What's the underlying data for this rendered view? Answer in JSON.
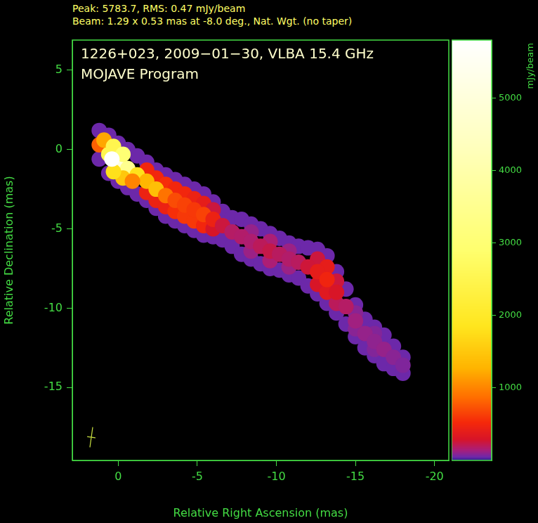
{
  "chart_data": {
    "type": "intensity_map",
    "header": [
      "Peak: 5783.7, RMS: 0.47 mJy/beam",
      "Beam: 1.29 x 0.53 mas at -8.0 deg., Nat. Wgt. (no taper)"
    ],
    "title": "1226+023, 2009−01−30, VLBA 15.4 GHz",
    "subtitle": "MOJAVE Program",
    "x_label": "Relative Right Ascension (mas)",
    "y_label": "Relative Declination (mas)",
    "xlim": [
      2.9,
      -20.9
    ],
    "xticks": [
      0,
      -5,
      -10,
      -15,
      -20
    ],
    "ylim": [
      -19.6,
      6.9
    ],
    "yticks": [
      -15,
      -10,
      -5,
      0,
      5
    ],
    "grid": false,
    "beam": {
      "major": 1.29,
      "minor": 0.53,
      "pa": -8.0
    },
    "colorbar": {
      "label": "mJy/beam",
      "lim": [
        0,
        5800
      ],
      "ticks": [
        1000,
        2000,
        3000,
        4000,
        5000
      ]
    },
    "points": [
      [
        1.2,
        1.2,
        45
      ],
      [
        0.6,
        0.9,
        45
      ],
      [
        0,
        0.4,
        45
      ],
      [
        -0.6,
        0,
        45
      ],
      [
        -1.2,
        -0.4,
        45
      ],
      [
        -1.8,
        -0.8,
        45
      ],
      [
        -2.4,
        -1.3,
        45
      ],
      [
        -3,
        -1.6,
        45
      ],
      [
        -3.6,
        -1.9,
        45
      ],
      [
        -4.2,
        -2.2,
        45
      ],
      [
        -4.8,
        -2.5,
        45
      ],
      [
        -5.4,
        -2.8,
        45
      ],
      [
        -6,
        -3.3,
        45
      ],
      [
        -6.6,
        -3.9,
        45
      ],
      [
        -7.2,
        -4.3,
        45
      ],
      [
        -7.8,
        -4.4,
        45
      ],
      [
        -8.4,
        -4.7,
        45
      ],
      [
        -9,
        -5,
        45
      ],
      [
        -9.6,
        -5.3,
        45
      ],
      [
        -10.2,
        -5.6,
        45
      ],
      [
        -10.8,
        -5.9,
        45
      ],
      [
        -11.4,
        -6.1,
        45
      ],
      [
        -12,
        -6.2,
        45
      ],
      [
        -12.6,
        -6.3,
        45
      ],
      [
        -13.2,
        -6.7,
        45
      ],
      [
        -13.8,
        -7.7,
        45
      ],
      [
        -14.4,
        -8.8,
        45
      ],
      [
        -15,
        -9.8,
        45
      ],
      [
        -15.6,
        -10.7,
        45
      ],
      [
        -16.2,
        -11.2,
        45
      ],
      [
        -16.8,
        -11.7,
        45
      ],
      [
        -17.4,
        -12.4,
        45
      ],
      [
        -18,
        -13.1,
        45
      ],
      [
        1.2,
        -0.6,
        45
      ],
      [
        0.6,
        -1.5,
        45
      ],
      [
        0,
        -2,
        45
      ],
      [
        -0.6,
        -2.4,
        45
      ],
      [
        -1.2,
        -2.8,
        45
      ],
      [
        -1.8,
        -3.2,
        45
      ],
      [
        -2.4,
        -3.7,
        45
      ],
      [
        -3,
        -4.2,
        45
      ],
      [
        -3.6,
        -4.5,
        45
      ],
      [
        -4.2,
        -4.8,
        45
      ],
      [
        -4.8,
        -5.1,
        45
      ],
      [
        -5.4,
        -5.4,
        45
      ],
      [
        -6,
        -5.5,
        45
      ],
      [
        -6.6,
        -5.7,
        45
      ],
      [
        -7.2,
        -6.1,
        45
      ],
      [
        -7.8,
        -6.6,
        45
      ],
      [
        -8.4,
        -6.9,
        45
      ],
      [
        -9,
        -7.2,
        45
      ],
      [
        -9.6,
        -7.5,
        45
      ],
      [
        -10.2,
        -7.6,
        45
      ],
      [
        -10.8,
        -7.9,
        45
      ],
      [
        -11.4,
        -8.1,
        45
      ],
      [
        -12,
        -8.6,
        45
      ],
      [
        -12.6,
        -9.1,
        45
      ],
      [
        -13.2,
        -9.7,
        45
      ],
      [
        -13.8,
        -10.3,
        45
      ],
      [
        -14.4,
        -11,
        45
      ],
      [
        -15,
        -11.8,
        45
      ],
      [
        -15.6,
        -12.5,
        45
      ],
      [
        -16.2,
        -13,
        45
      ],
      [
        -16.8,
        -13.5,
        45
      ],
      [
        -17.4,
        -13.8,
        45
      ],
      [
        -18,
        -14.1,
        45
      ],
      [
        -1.8,
        -1.3,
        500
      ],
      [
        -1.8,
        -2.7,
        450
      ],
      [
        -2.4,
        -1.8,
        500
      ],
      [
        -2.4,
        -3.2,
        450
      ],
      [
        -3,
        -2.2,
        550
      ],
      [
        -3,
        -3.6,
        450
      ],
      [
        -3.6,
        -2.5,
        500
      ],
      [
        -3.6,
        -3.9,
        550
      ],
      [
        -4.2,
        -2.8,
        500
      ],
      [
        -4.2,
        -4.2,
        600
      ],
      [
        -4.8,
        -3.1,
        450
      ],
      [
        -4.8,
        -4.5,
        600
      ],
      [
        -5.4,
        -3.4,
        400
      ],
      [
        -5.4,
        -4.8,
        500
      ],
      [
        -6,
        -3.8,
        250
      ],
      [
        -6,
        -5,
        300
      ],
      [
        -8.4,
        -5.2,
        110
      ],
      [
        -8.4,
        -6.4,
        120
      ],
      [
        -9.6,
        -5.8,
        150
      ],
      [
        -9.6,
        -7,
        150
      ],
      [
        -10.8,
        -6.4,
        120
      ],
      [
        -10.8,
        -7.4,
        120
      ],
      [
        -12.6,
        -6.9,
        250
      ],
      [
        -12.6,
        -8.5,
        300
      ],
      [
        -13.2,
        -7.4,
        400
      ],
      [
        -13.2,
        -9,
        350
      ],
      [
        -13.8,
        -8.3,
        250
      ],
      [
        -13.8,
        -9.7,
        200
      ],
      [
        -15,
        -10.3,
        90
      ],
      [
        -15,
        -11.3,
        90
      ],
      [
        -16.2,
        -11.6,
        80
      ],
      [
        -16.2,
        -12.6,
        80
      ],
      [
        1.2,
        0.3,
        800
      ],
      [
        0.6,
        -0.3,
        2500
      ],
      [
        0,
        -0.8,
        5000
      ],
      [
        -0.6,
        -1.2,
        3500
      ],
      [
        -1.2,
        -1.6,
        1800
      ],
      [
        -1.8,
        -2,
        1300
      ],
      [
        -2.4,
        -2.5,
        1400
      ],
      [
        -3,
        -2.9,
        900
      ],
      [
        -3.6,
        -3.2,
        700
      ],
      [
        -4.2,
        -3.5,
        650
      ],
      [
        -4.8,
        -3.8,
        600
      ],
      [
        -5.4,
        -4.1,
        650
      ],
      [
        -6,
        -4.4,
        450
      ],
      [
        -6.6,
        -4.8,
        250
      ],
      [
        -7.2,
        -5.2,
        180
      ],
      [
        -7.8,
        -5.5,
        170
      ],
      [
        -8.4,
        -5.8,
        160
      ],
      [
        -9,
        -6.1,
        200
      ],
      [
        -9.6,
        -6.4,
        230
      ],
      [
        -10.2,
        -6.6,
        190
      ],
      [
        -10.8,
        -6.9,
        170
      ],
      [
        -11.4,
        -7.1,
        190
      ],
      [
        -12,
        -7.4,
        260
      ],
      [
        -12.6,
        -7.7,
        400
      ],
      [
        -13.2,
        -8.2,
        480
      ],
      [
        -13.8,
        -9,
        300
      ],
      [
        -14.4,
        -9.9,
        180
      ],
      [
        -15,
        -10.8,
        130
      ],
      [
        -15.6,
        -11.6,
        110
      ],
      [
        -16.2,
        -12.1,
        100
      ],
      [
        -16.8,
        -12.6,
        110
      ],
      [
        -17.4,
        -13.1,
        90
      ],
      [
        -18,
        -13.6,
        75
      ],
      [
        0.9,
        0.6,
        1200
      ],
      [
        0.3,
        0.2,
        2500
      ],
      [
        -0.3,
        -0.3,
        3000
      ],
      [
        -0.3,
        -1.8,
        1500
      ],
      [
        0.3,
        -1.4,
        1800
      ],
      [
        -0.9,
        -2,
        1000
      ],
      [
        0.4,
        -0.6,
        5783.7
      ]
    ]
  }
}
